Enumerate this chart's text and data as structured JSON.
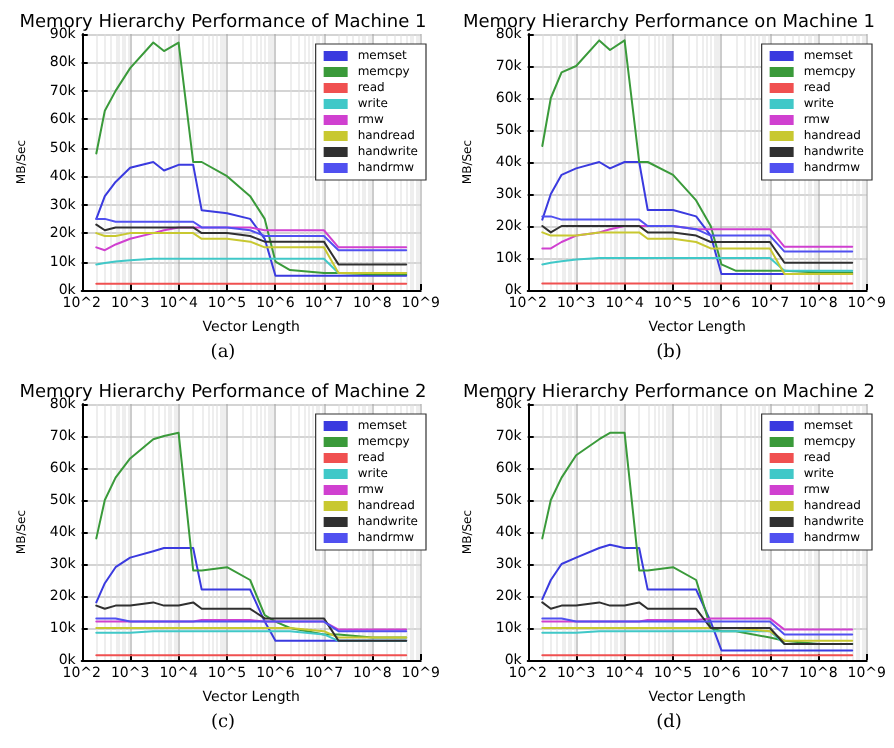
{
  "chart_data": [
    {
      "type": "line",
      "title": "Memory Hierarchy Performance of Machine 1",
      "xlabel": "Vector Length",
      "ylabel": "MB/Sec",
      "annotations": [
        "(a)"
      ],
      "log": "x",
      "grid": true,
      "legend": "top right",
      "xlim": [
        100,
        1000000000
      ],
      "xticks": [
        {
          "value": 100,
          "label": "10^2"
        },
        {
          "value": 1000,
          "label": "10^3"
        },
        {
          "value": 10000,
          "label": "10^4"
        },
        {
          "value": 100000,
          "label": "10^5"
        },
        {
          "value": 1000000,
          "label": "10^6"
        },
        {
          "value": 10000000,
          "label": "10^7"
        },
        {
          "value": 100000000,
          "label": "10^8"
        },
        {
          "value": 1000000000,
          "label": "10^9"
        }
      ],
      "ylim": [
        0,
        90000
      ],
      "yticks": [
        {
          "value": 0,
          "label": "0k"
        },
        {
          "value": 10000,
          "label": "10k"
        },
        {
          "value": 20000,
          "label": "20k"
        },
        {
          "value": 30000,
          "label": "30k"
        },
        {
          "value": 40000,
          "label": "40k"
        },
        {
          "value": 50000,
          "label": "50k"
        },
        {
          "value": 60000,
          "label": "60k"
        },
        {
          "value": 70000,
          "label": "70k"
        },
        {
          "value": 80000,
          "label": "80k"
        },
        {
          "value": 90000,
          "label": "90k"
        }
      ],
      "x": [
        200,
        300,
        500,
        1000,
        3000,
        5000,
        10000,
        20000,
        30000,
        100000,
        300000,
        600000,
        1000000,
        2000000,
        10000000,
        20000000,
        100000000,
        500000000
      ],
      "series": [
        {
          "name": "memset",
          "color": "#3a3adf",
          "values": [
            25000,
            33000,
            38000,
            43000,
            45000,
            42000,
            44000,
            44000,
            28000,
            27000,
            25000,
            18000,
            5000,
            5000,
            5000,
            5000,
            5000,
            5000
          ]
        },
        {
          "name": "memcpy",
          "color": "#3a9a3a",
          "values": [
            48000,
            63000,
            70000,
            78000,
            87000,
            84000,
            87000,
            45000,
            45000,
            40000,
            33000,
            25000,
            10000,
            7000,
            6000,
            6000,
            5500,
            5500
          ]
        },
        {
          "name": "read",
          "color": "#f05050",
          "values": [
            2200,
            2200,
            2200,
            2200,
            2200,
            2200,
            2200,
            2200,
            2200,
            2200,
            2200,
            2200,
            2200,
            2200,
            2200,
            2200,
            2200,
            2200
          ]
        },
        {
          "name": "write",
          "color": "#40c8c8",
          "values": [
            9000,
            9500,
            10000,
            10500,
            11000,
            11000,
            11000,
            11000,
            11000,
            11000,
            11000,
            11000,
            11000,
            11000,
            11000,
            6000,
            6000,
            6000
          ]
        },
        {
          "name": "rmw",
          "color": "#d040d0",
          "values": [
            15000,
            14000,
            16000,
            18000,
            20000,
            21000,
            22000,
            22000,
            22000,
            22000,
            22000,
            21000,
            21000,
            21000,
            21000,
            15000,
            15000,
            15000
          ]
        },
        {
          "name": "handread",
          "color": "#c8c830",
          "values": [
            20000,
            19000,
            19000,
            20000,
            20000,
            20000,
            20000,
            20000,
            18000,
            18000,
            17000,
            15000,
            15000,
            15000,
            15000,
            6000,
            6000,
            6000
          ]
        },
        {
          "name": "handwrite",
          "color": "#303030",
          "values": [
            23000,
            21000,
            22000,
            22000,
            22000,
            22000,
            22000,
            22000,
            20000,
            20000,
            19000,
            17000,
            17000,
            17000,
            17000,
            9000,
            9000,
            9000
          ]
        },
        {
          "name": "handrmw",
          "color": "#5050f0",
          "values": [
            25000,
            25000,
            24000,
            24000,
            24000,
            24000,
            24000,
            24000,
            22000,
            22000,
            21000,
            19000,
            19000,
            19000,
            19000,
            14000,
            14000,
            14000
          ]
        }
      ]
    },
    {
      "type": "line",
      "title": "Memory Hierarchy Performance on Machine 1",
      "xlabel": "Vector Length",
      "ylabel": "MB/Sec",
      "annotations": [
        "(b)"
      ],
      "log": "x",
      "grid": true,
      "legend": "top right",
      "xlim": [
        100,
        1000000000
      ],
      "xticks": [
        {
          "value": 100,
          "label": "10^2"
        },
        {
          "value": 1000,
          "label": "10^3"
        },
        {
          "value": 10000,
          "label": "10^4"
        },
        {
          "value": 100000,
          "label": "10^5"
        },
        {
          "value": 1000000,
          "label": "10^6"
        },
        {
          "value": 10000000,
          "label": "10^7"
        },
        {
          "value": 100000000,
          "label": "10^8"
        },
        {
          "value": 1000000000,
          "label": "10^9"
        }
      ],
      "ylim": [
        0,
        80000
      ],
      "yticks": [
        {
          "value": 0,
          "label": "0k"
        },
        {
          "value": 10000,
          "label": "10k"
        },
        {
          "value": 20000,
          "label": "20k"
        },
        {
          "value": 30000,
          "label": "30k"
        },
        {
          "value": 40000,
          "label": "40k"
        },
        {
          "value": 50000,
          "label": "50k"
        },
        {
          "value": 60000,
          "label": "60k"
        },
        {
          "value": 70000,
          "label": "70k"
        },
        {
          "value": 80000,
          "label": "80k"
        }
      ],
      "x": [
        200,
        300,
        500,
        1000,
        3000,
        5000,
        10000,
        20000,
        30000,
        100000,
        300000,
        600000,
        1000000,
        2000000,
        10000000,
        20000000,
        100000000,
        500000000
      ],
      "series": [
        {
          "name": "memset",
          "color": "#3a3adf",
          "values": [
            22000,
            30000,
            36000,
            38000,
            40000,
            38000,
            40000,
            40000,
            25000,
            25000,
            23000,
            17000,
            5000,
            5000,
            5000,
            5000,
            5000,
            5000
          ]
        },
        {
          "name": "memcpy",
          "color": "#3a9a3a",
          "values": [
            45000,
            60000,
            68000,
            70000,
            78000,
            75000,
            78000,
            40000,
            40000,
            36000,
            28000,
            20000,
            8000,
            6000,
            6000,
            6000,
            5500,
            5500
          ]
        },
        {
          "name": "read",
          "color": "#f05050",
          "values": [
            2000,
            2000,
            2000,
            2000,
            2000,
            2000,
            2000,
            2000,
            2000,
            2000,
            2000,
            2000,
            2000,
            2000,
            2000,
            2000,
            2000,
            2000
          ]
        },
        {
          "name": "write",
          "color": "#40c8c8",
          "values": [
            8000,
            8500,
            9000,
            9500,
            10000,
            10000,
            10000,
            10000,
            10000,
            10000,
            10000,
            10000,
            10000,
            10000,
            10000,
            6000,
            6000,
            6000
          ]
        },
        {
          "name": "rmw",
          "color": "#d040d0",
          "values": [
            13000,
            13000,
            15000,
            17000,
            18000,
            19000,
            20000,
            20000,
            20000,
            20000,
            19000,
            19000,
            19000,
            19000,
            19000,
            13500,
            13500,
            13500
          ]
        },
        {
          "name": "handread",
          "color": "#c8c830",
          "values": [
            18000,
            17000,
            17000,
            17000,
            18000,
            18000,
            18000,
            18000,
            16000,
            16000,
            15000,
            13000,
            13000,
            13000,
            13000,
            5000,
            5000,
            5000
          ]
        },
        {
          "name": "handwrite",
          "color": "#303030",
          "values": [
            20000,
            18000,
            20000,
            20000,
            20000,
            20000,
            20000,
            20000,
            18000,
            18000,
            17000,
            15000,
            15000,
            15000,
            15000,
            8500,
            8500,
            8500
          ]
        },
        {
          "name": "handrmw",
          "color": "#5050f0",
          "values": [
            23000,
            23000,
            22000,
            22000,
            22000,
            22000,
            22000,
            22000,
            20000,
            20000,
            19000,
            17000,
            17000,
            17000,
            17000,
            12000,
            12000,
            12000
          ]
        }
      ]
    },
    {
      "type": "line",
      "title": "Memory Hierarchy Performance of Machine 2",
      "xlabel": "Vector Length",
      "ylabel": "MB/Sec",
      "annotations": [
        "(c)"
      ],
      "log": "x",
      "grid": true,
      "legend": "top right",
      "xlim": [
        100,
        1000000000
      ],
      "xticks": [
        {
          "value": 100,
          "label": "10^2"
        },
        {
          "value": 1000,
          "label": "10^3"
        },
        {
          "value": 10000,
          "label": "10^4"
        },
        {
          "value": 100000,
          "label": "10^5"
        },
        {
          "value": 1000000,
          "label": "10^6"
        },
        {
          "value": 10000000,
          "label": "10^7"
        },
        {
          "value": 100000000,
          "label": "10^8"
        },
        {
          "value": 1000000000,
          "label": "10^9"
        }
      ],
      "ylim": [
        0,
        80000
      ],
      "yticks": [
        {
          "value": 0,
          "label": "0k"
        },
        {
          "value": 10000,
          "label": "10k"
        },
        {
          "value": 20000,
          "label": "20k"
        },
        {
          "value": 30000,
          "label": "30k"
        },
        {
          "value": 40000,
          "label": "40k"
        },
        {
          "value": 50000,
          "label": "50k"
        },
        {
          "value": 60000,
          "label": "60k"
        },
        {
          "value": 70000,
          "label": "70k"
        },
        {
          "value": 80000,
          "label": "80k"
        }
      ],
      "x": [
        200,
        300,
        500,
        1000,
        3000,
        5000,
        10000,
        20000,
        30000,
        100000,
        300000,
        600000,
        1000000,
        2000000,
        10000000,
        20000000,
        100000000,
        500000000
      ],
      "series": [
        {
          "name": "memset",
          "color": "#3a3adf",
          "values": [
            18000,
            24000,
            29000,
            32000,
            34000,
            35000,
            35000,
            35000,
            22000,
            22000,
            22000,
            12000,
            6000,
            6000,
            6000,
            6000,
            6000,
            6000
          ]
        },
        {
          "name": "memcpy",
          "color": "#3a9a3a",
          "values": [
            38000,
            50000,
            57000,
            63000,
            69000,
            70000,
            71000,
            28000,
            28000,
            29000,
            25000,
            14000,
            12000,
            10000,
            8000,
            8000,
            7000,
            7000
          ]
        },
        {
          "name": "read",
          "color": "#f05050",
          "values": [
            1500,
            1500,
            1500,
            1500,
            1500,
            1500,
            1500,
            1500,
            1500,
            1500,
            1500,
            1500,
            1500,
            1500,
            1500,
            1500,
            1500,
            1500
          ]
        },
        {
          "name": "write",
          "color": "#40c8c8",
          "values": [
            8500,
            8500,
            8500,
            8500,
            9000,
            9000,
            9000,
            9000,
            9000,
            9000,
            9000,
            9000,
            9000,
            9000,
            8000,
            6000,
            6000,
            6000
          ]
        },
        {
          "name": "rmw",
          "color": "#d040d0",
          "values": [
            12000,
            12000,
            12000,
            12000,
            12000,
            12000,
            12000,
            12000,
            12500,
            12500,
            12500,
            12000,
            12000,
            12000,
            12000,
            9500,
            9500,
            9500
          ]
        },
        {
          "name": "handread",
          "color": "#c8c830",
          "values": [
            10000,
            10000,
            10000,
            10000,
            10000,
            10000,
            10000,
            10000,
            10000,
            10000,
            10000,
            10000,
            10000,
            10000,
            9000,
            7000,
            7000,
            7000
          ]
        },
        {
          "name": "handwrite",
          "color": "#303030",
          "values": [
            17000,
            16000,
            17000,
            17000,
            18000,
            17000,
            17000,
            18000,
            16000,
            16000,
            16000,
            13000,
            13000,
            13000,
            13000,
            6000,
            6000,
            6000
          ]
        },
        {
          "name": "handrmw",
          "color": "#5050f0",
          "values": [
            13000,
            13000,
            13000,
            12000,
            12000,
            12000,
            12000,
            12000,
            12000,
            12000,
            12000,
            12000,
            12000,
            12000,
            12000,
            9000,
            9000,
            9000
          ]
        }
      ]
    },
    {
      "type": "line",
      "title": "Memory Hierarchy Performance on Machine 2",
      "xlabel": "Vector Length",
      "ylabel": "MB/Sec",
      "annotations": [
        "(d)"
      ],
      "log": "x",
      "grid": true,
      "legend": "top right",
      "xlim": [
        100,
        1000000000
      ],
      "xticks": [
        {
          "value": 100,
          "label": "10^2"
        },
        {
          "value": 1000,
          "label": "10^3"
        },
        {
          "value": 10000,
          "label": "10^4"
        },
        {
          "value": 100000,
          "label": "10^5"
        },
        {
          "value": 1000000,
          "label": "10^6"
        },
        {
          "value": 10000000,
          "label": "10^7"
        },
        {
          "value": 100000000,
          "label": "10^8"
        },
        {
          "value": 1000000000,
          "label": "10^9"
        }
      ],
      "ylim": [
        0,
        80000
      ],
      "yticks": [
        {
          "value": 0,
          "label": "0k"
        },
        {
          "value": 10000,
          "label": "10k"
        },
        {
          "value": 20000,
          "label": "20k"
        },
        {
          "value": 30000,
          "label": "30k"
        },
        {
          "value": 40000,
          "label": "40k"
        },
        {
          "value": 50000,
          "label": "50k"
        },
        {
          "value": 60000,
          "label": "60k"
        },
        {
          "value": 70000,
          "label": "70k"
        },
        {
          "value": 80000,
          "label": "80k"
        }
      ],
      "x": [
        200,
        300,
        500,
        1000,
        3000,
        5000,
        10000,
        20000,
        30000,
        100000,
        300000,
        600000,
        1000000,
        2000000,
        10000000,
        20000000,
        100000000,
        500000000
      ],
      "series": [
        {
          "name": "memset",
          "color": "#3a3adf",
          "values": [
            19000,
            25000,
            30000,
            32000,
            35000,
            36000,
            35000,
            35000,
            22000,
            22000,
            22000,
            12000,
            3000,
            3000,
            3000,
            3000,
            3000,
            3000
          ]
        },
        {
          "name": "memcpy",
          "color": "#3a9a3a",
          "values": [
            38000,
            50000,
            57000,
            64000,
            69000,
            71000,
            71000,
            28000,
            28000,
            29000,
            25000,
            10000,
            9000,
            9000,
            7000,
            6000,
            5000,
            5000
          ]
        },
        {
          "name": "read",
          "color": "#f05050",
          "values": [
            1500,
            1500,
            1500,
            1500,
            1500,
            1500,
            1500,
            1500,
            1500,
            1500,
            1500,
            1500,
            1500,
            1500,
            1500,
            1500,
            1500,
            1500
          ]
        },
        {
          "name": "write",
          "color": "#40c8c8",
          "values": [
            8500,
            8500,
            8500,
            8500,
            9000,
            9000,
            9000,
            9000,
            9000,
            9000,
            9000,
            9000,
            9000,
            9000,
            9000,
            5000,
            5000,
            5000
          ]
        },
        {
          "name": "rmw",
          "color": "#d040d0",
          "values": [
            12000,
            12000,
            12000,
            12000,
            12000,
            12000,
            12000,
            12000,
            12500,
            12500,
            12500,
            13000,
            13000,
            13000,
            13000,
            9500,
            9500,
            9500
          ]
        },
        {
          "name": "handread",
          "color": "#c8c830",
          "values": [
            10000,
            10000,
            10000,
            10000,
            10000,
            10000,
            10000,
            10000,
            10000,
            10000,
            10000,
            10000,
            10000,
            10000,
            9000,
            6000,
            6000,
            6000
          ]
        },
        {
          "name": "handwrite",
          "color": "#303030",
          "values": [
            18000,
            16000,
            17000,
            17000,
            18000,
            17000,
            17000,
            18000,
            16000,
            16000,
            16000,
            10000,
            10000,
            10000,
            10000,
            5000,
            5000,
            5000
          ]
        },
        {
          "name": "handrmw",
          "color": "#5050f0",
          "values": [
            13000,
            13000,
            13000,
            12000,
            12000,
            12000,
            12000,
            12000,
            12000,
            12000,
            12000,
            12000,
            12000,
            12000,
            12000,
            8000,
            8000,
            8000
          ]
        }
      ]
    }
  ]
}
